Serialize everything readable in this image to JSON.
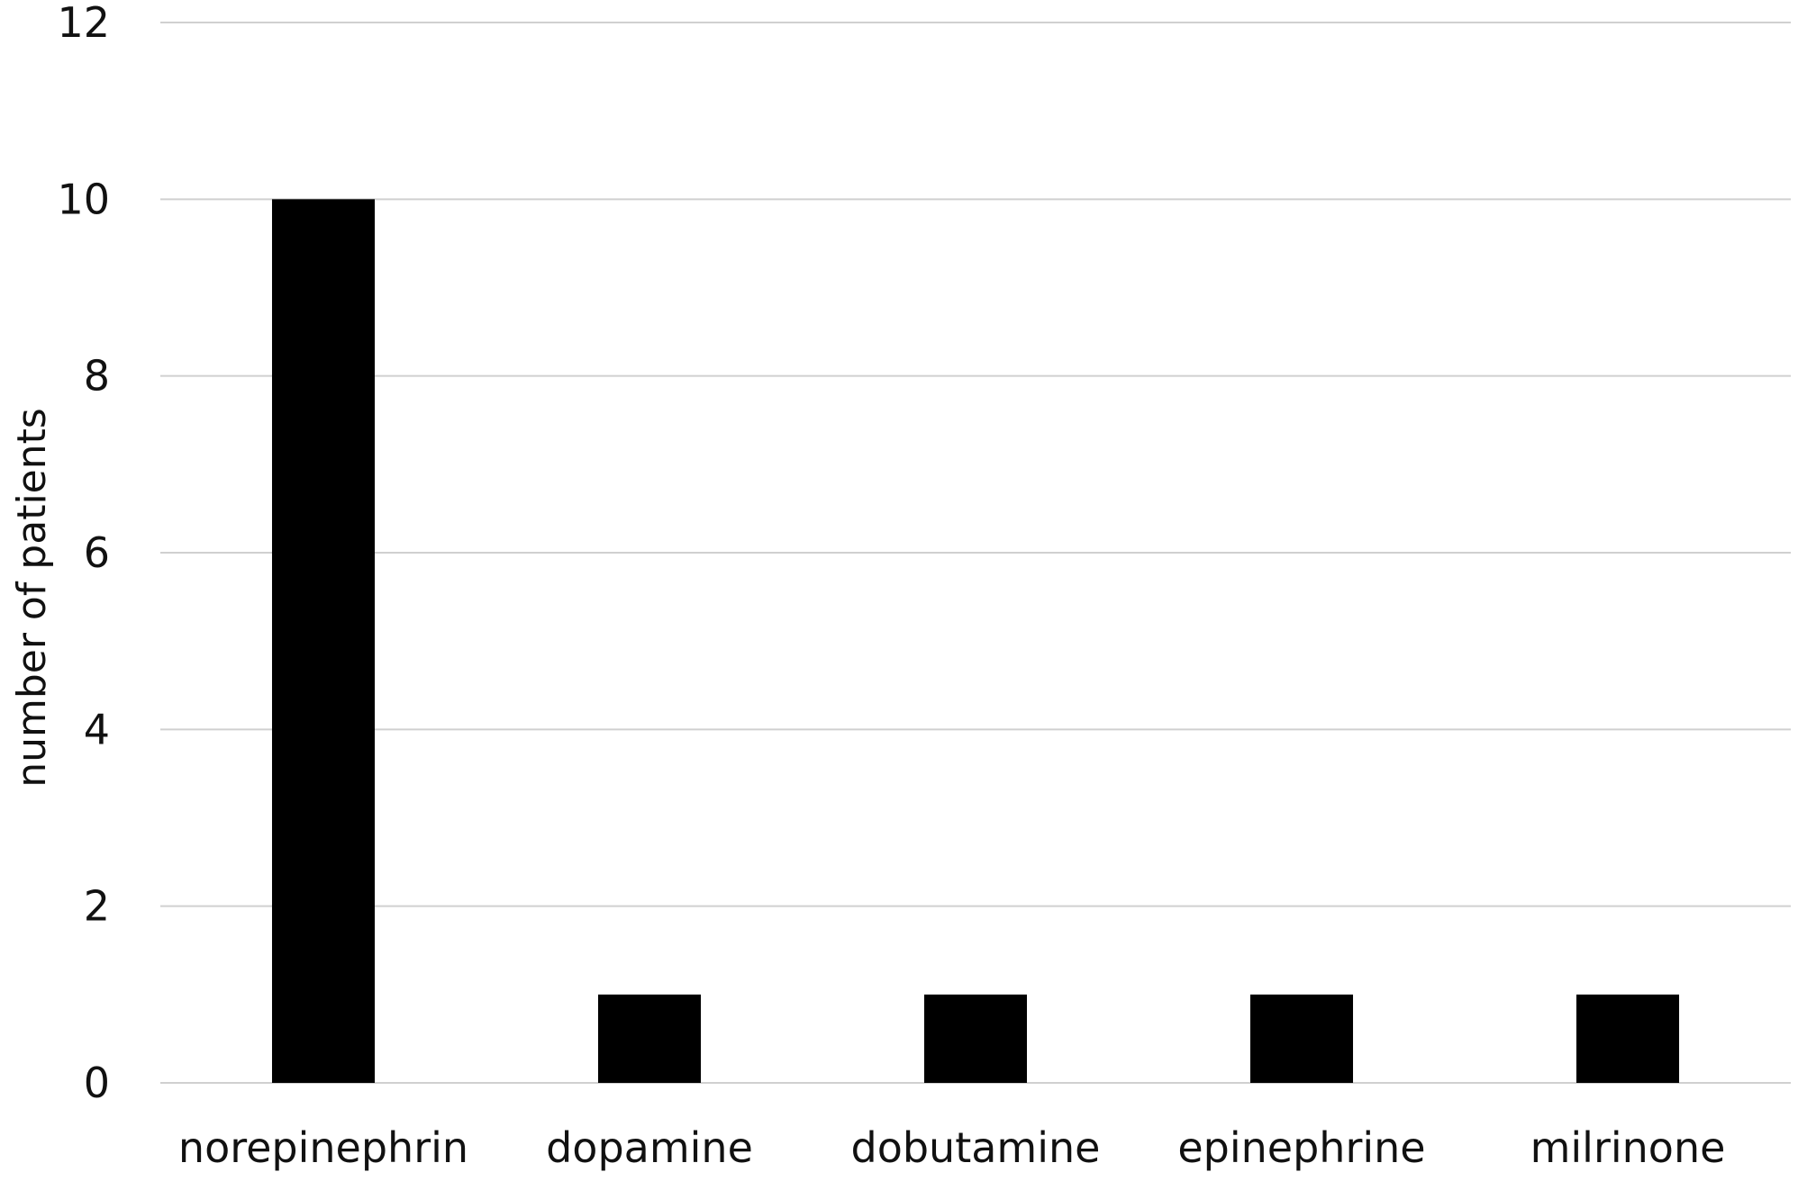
{
  "chart_data": {
    "type": "bar",
    "title": "",
    "xlabel": "",
    "ylabel": "number of patients",
    "categories": [
      "norepinephrin",
      "dopamine",
      "dobutamine",
      "epinephrine",
      "milrinone"
    ],
    "values": [
      10,
      1,
      1,
      1,
      1
    ],
    "ylim": [
      0,
      12
    ],
    "yticks": [
      0,
      2,
      4,
      6,
      8,
      10,
      12
    ],
    "grid": true,
    "legend": "none",
    "bar_color": "#000000"
  }
}
